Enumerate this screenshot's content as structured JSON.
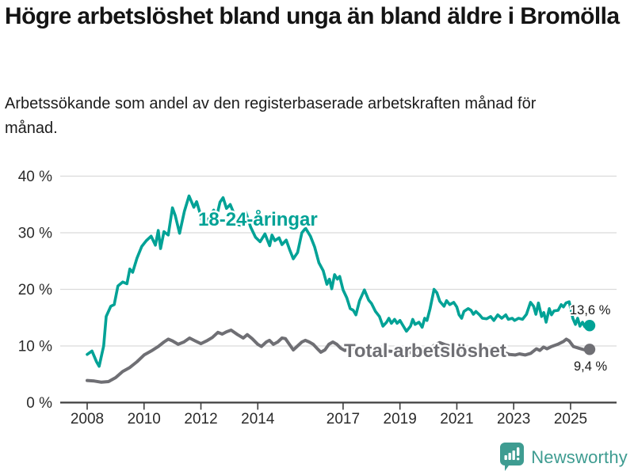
{
  "header": {
    "title": "Högre arbetslöshet bland unga än bland äldre i Bromölla",
    "subtitle": "Arbetssökande som andel av den registerbaserade arbetskraften månad för månad."
  },
  "chart_data": {
    "type": "line",
    "title": "Högre arbetslöshet bland unga än bland äldre i Bromölla",
    "xlabel": "",
    "ylabel": "Arbetssökande som andel av den registerbaserade arbetskraften (%)",
    "unit": "%",
    "ylim": [
      0,
      40
    ],
    "xlim": [
      2007.0,
      2026.6
    ],
    "grid": "horizontal",
    "legend_position": "inline-labels",
    "yticks": [
      {
        "value": 0,
        "label": "0 %"
      },
      {
        "value": 10,
        "label": "10 %"
      },
      {
        "value": 20,
        "label": "20 %"
      },
      {
        "value": 30,
        "label": "30 %"
      },
      {
        "value": 40,
        "label": "40 %"
      }
    ],
    "xticks": [
      {
        "value": 2008,
        "label": "2008"
      },
      {
        "value": 2010,
        "label": "2010"
      },
      {
        "value": 2012,
        "label": "2012"
      },
      {
        "value": 2014,
        "label": "2014"
      },
      {
        "value": 2017,
        "label": "2017"
      },
      {
        "value": 2019,
        "label": "2019"
      },
      {
        "value": 2021,
        "label": "2021"
      },
      {
        "value": 2023,
        "label": "2023"
      },
      {
        "value": 2025,
        "label": "2025"
      }
    ],
    "series": [
      {
        "name": "Total arbetslöshet",
        "inline_label": "Total arbetslöshet",
        "end_label": "9,4 %",
        "last_value": 9.4,
        "color": "#6f6f74",
        "points": [
          [
            2008.0,
            3.9
          ],
          [
            2008.25,
            3.8
          ],
          [
            2008.5,
            3.6
          ],
          [
            2008.75,
            3.7
          ],
          [
            2009.0,
            4.4
          ],
          [
            2009.25,
            5.5
          ],
          [
            2009.5,
            6.2
          ],
          [
            2009.75,
            7.2
          ],
          [
            2010.0,
            8.4
          ],
          [
            2010.25,
            9.1
          ],
          [
            2010.5,
            9.9
          ],
          [
            2010.7,
            10.7
          ],
          [
            2010.85,
            11.2
          ],
          [
            2011.0,
            10.9
          ],
          [
            2011.2,
            10.3
          ],
          [
            2011.4,
            10.7
          ],
          [
            2011.6,
            11.4
          ],
          [
            2011.8,
            10.9
          ],
          [
            2012.0,
            10.4
          ],
          [
            2012.2,
            10.9
          ],
          [
            2012.4,
            11.5
          ],
          [
            2012.6,
            12.4
          ],
          [
            2012.75,
            12.1
          ],
          [
            2012.9,
            12.5
          ],
          [
            2013.06,
            12.8
          ],
          [
            2013.29,
            12.0
          ],
          [
            2013.49,
            11.4
          ],
          [
            2013.63,
            12.0
          ],
          [
            2013.8,
            11.3
          ],
          [
            2014.0,
            10.3
          ],
          [
            2014.13,
            9.9
          ],
          [
            2014.3,
            10.7
          ],
          [
            2014.41,
            11.0
          ],
          [
            2014.55,
            10.3
          ],
          [
            2014.7,
            10.7
          ],
          [
            2014.85,
            11.4
          ],
          [
            2014.97,
            11.3
          ],
          [
            2015.11,
            10.3
          ],
          [
            2015.25,
            9.3
          ],
          [
            2015.4,
            10.0
          ],
          [
            2015.55,
            10.7
          ],
          [
            2015.67,
            11.0
          ],
          [
            2015.81,
            10.7
          ],
          [
            2015.95,
            10.3
          ],
          [
            2016.08,
            9.6
          ],
          [
            2016.22,
            8.9
          ],
          [
            2016.36,
            9.3
          ],
          [
            2016.5,
            10.3
          ],
          [
            2016.64,
            10.7
          ],
          [
            2016.78,
            10.3
          ],
          [
            2016.92,
            9.6
          ],
          [
            2017.06,
            9.2
          ],
          [
            2017.25,
            9.5
          ],
          [
            2017.45,
            9.8
          ],
          [
            2017.65,
            9.5
          ],
          [
            2017.85,
            9.3
          ],
          [
            2018.05,
            9.6
          ],
          [
            2018.3,
            9.3
          ],
          [
            2018.55,
            9.1
          ],
          [
            2018.8,
            9.0
          ],
          [
            2019.0,
            8.8
          ],
          [
            2019.25,
            8.7
          ],
          [
            2019.5,
            9.0
          ],
          [
            2019.75,
            8.8
          ],
          [
            2020.0,
            9.2
          ],
          [
            2020.2,
            10.1
          ],
          [
            2020.4,
            10.6
          ],
          [
            2020.6,
            10.2
          ],
          [
            2020.8,
            9.9
          ],
          [
            2021.0,
            9.6
          ],
          [
            2021.25,
            9.2
          ],
          [
            2021.5,
            8.9
          ],
          [
            2021.75,
            8.6
          ],
          [
            2022.0,
            8.5
          ],
          [
            2022.2,
            8.3
          ],
          [
            2022.4,
            8.5
          ],
          [
            2022.58,
            8.5
          ],
          [
            2022.7,
            8.8
          ],
          [
            2022.85,
            8.5
          ],
          [
            2023.05,
            8.4
          ],
          [
            2023.2,
            8.6
          ],
          [
            2023.4,
            8.4
          ],
          [
            2023.6,
            8.7
          ],
          [
            2023.8,
            9.5
          ],
          [
            2023.92,
            9.2
          ],
          [
            2024.05,
            9.8
          ],
          [
            2024.17,
            9.5
          ],
          [
            2024.33,
            9.9
          ],
          [
            2024.55,
            10.3
          ],
          [
            2024.75,
            10.8
          ],
          [
            2024.85,
            11.2
          ],
          [
            2024.95,
            10.9
          ],
          [
            2025.1,
            9.9
          ],
          [
            2025.3,
            9.6
          ],
          [
            2025.5,
            9.3
          ],
          [
            2025.67,
            9.4
          ]
        ]
      },
      {
        "name": "18-24-åringar",
        "inline_label": "18-24-åringar",
        "end_label": "13,6 %",
        "last_value": 13.6,
        "color": "#00a296",
        "points": [
          [
            2008.0,
            8.5
          ],
          [
            2008.17,
            9.1
          ],
          [
            2008.33,
            7.2
          ],
          [
            2008.42,
            6.4
          ],
          [
            2008.58,
            10.0
          ],
          [
            2008.67,
            15.2
          ],
          [
            2008.83,
            17.0
          ],
          [
            2008.95,
            17.3
          ],
          [
            2009.08,
            20.6
          ],
          [
            2009.25,
            21.3
          ],
          [
            2009.4,
            21.0
          ],
          [
            2009.5,
            23.6
          ],
          [
            2009.6,
            23.0
          ],
          [
            2009.75,
            25.5
          ],
          [
            2009.92,
            27.6
          ],
          [
            2010.08,
            28.6
          ],
          [
            2010.25,
            29.4
          ],
          [
            2010.4,
            27.8
          ],
          [
            2010.5,
            30.4
          ],
          [
            2010.58,
            27.2
          ],
          [
            2010.7,
            30.2
          ],
          [
            2010.85,
            29.6
          ],
          [
            2011.0,
            34.4
          ],
          [
            2011.1,
            33.0
          ],
          [
            2011.25,
            29.9
          ],
          [
            2011.42,
            33.8
          ],
          [
            2011.58,
            36.5
          ],
          [
            2011.75,
            34.5
          ],
          [
            2011.85,
            35.5
          ],
          [
            2011.95,
            33.8
          ],
          [
            2012.08,
            31.4
          ],
          [
            2012.17,
            31.2
          ],
          [
            2012.33,
            33.2
          ],
          [
            2012.45,
            34.0
          ],
          [
            2012.55,
            32.8
          ],
          [
            2012.67,
            35.4
          ],
          [
            2012.78,
            36.2
          ],
          [
            2012.9,
            34.3
          ],
          [
            2013.03,
            35.0
          ],
          [
            2013.17,
            33.3
          ],
          [
            2013.33,
            31.4
          ],
          [
            2013.5,
            31.2
          ],
          [
            2013.58,
            33.6
          ],
          [
            2013.75,
            31.0
          ],
          [
            2013.92,
            29.2
          ],
          [
            2014.08,
            28.4
          ],
          [
            2014.25,
            29.8
          ],
          [
            2014.42,
            27.7
          ],
          [
            2014.5,
            29.6
          ],
          [
            2014.6,
            28.6
          ],
          [
            2014.75,
            29.1
          ],
          [
            2014.85,
            27.9
          ],
          [
            2015.0,
            28.7
          ],
          [
            2015.12,
            27.0
          ],
          [
            2015.25,
            25.4
          ],
          [
            2015.4,
            26.5
          ],
          [
            2015.55,
            30.0
          ],
          [
            2015.68,
            30.8
          ],
          [
            2015.85,
            29.4
          ],
          [
            2016.0,
            27.5
          ],
          [
            2016.15,
            24.7
          ],
          [
            2016.3,
            23.3
          ],
          [
            2016.43,
            20.9
          ],
          [
            2016.52,
            21.8
          ],
          [
            2016.6,
            20.1
          ],
          [
            2016.7,
            22.6
          ],
          [
            2016.8,
            21.8
          ],
          [
            2016.88,
            22.3
          ],
          [
            2017.0,
            19.9
          ],
          [
            2017.13,
            18.5
          ],
          [
            2017.25,
            16.6
          ],
          [
            2017.36,
            16.3
          ],
          [
            2017.45,
            15.5
          ],
          [
            2017.58,
            18.0
          ],
          [
            2017.75,
            19.9
          ],
          [
            2017.9,
            18.1
          ],
          [
            2018.0,
            17.5
          ],
          [
            2018.14,
            16.1
          ],
          [
            2018.28,
            15.2
          ],
          [
            2018.4,
            13.5
          ],
          [
            2018.53,
            14.2
          ],
          [
            2018.61,
            14.9
          ],
          [
            2018.7,
            14.0
          ],
          [
            2018.81,
            14.7
          ],
          [
            2018.9,
            14.0
          ],
          [
            2019.0,
            14.5
          ],
          [
            2019.12,
            13.5
          ],
          [
            2019.23,
            12.6
          ],
          [
            2019.37,
            13.5
          ],
          [
            2019.45,
            14.7
          ],
          [
            2019.53,
            13.8
          ],
          [
            2019.67,
            14.2
          ],
          [
            2019.78,
            13.3
          ],
          [
            2019.87,
            14.9
          ],
          [
            2019.95,
            14.5
          ],
          [
            2020.06,
            16.6
          ],
          [
            2020.2,
            20.0
          ],
          [
            2020.3,
            19.4
          ],
          [
            2020.4,
            17.9
          ],
          [
            2020.55,
            17.0
          ],
          [
            2020.64,
            18.0
          ],
          [
            2020.75,
            17.3
          ],
          [
            2020.89,
            17.7
          ],
          [
            2021.0,
            16.9
          ],
          [
            2021.08,
            15.5
          ],
          [
            2021.17,
            14.9
          ],
          [
            2021.25,
            16.1
          ],
          [
            2021.4,
            16.6
          ],
          [
            2021.5,
            16.3
          ],
          [
            2021.58,
            15.6
          ],
          [
            2021.67,
            16.1
          ],
          [
            2021.8,
            15.5
          ],
          [
            2021.9,
            14.9
          ],
          [
            2022.05,
            14.8
          ],
          [
            2022.19,
            15.2
          ],
          [
            2022.3,
            14.5
          ],
          [
            2022.44,
            15.5
          ],
          [
            2022.58,
            14.9
          ],
          [
            2022.72,
            15.5
          ],
          [
            2022.81,
            14.7
          ],
          [
            2022.95,
            14.9
          ],
          [
            2023.03,
            14.5
          ],
          [
            2023.17,
            14.9
          ],
          [
            2023.31,
            14.7
          ],
          [
            2023.45,
            15.6
          ],
          [
            2023.59,
            17.7
          ],
          [
            2023.7,
            17.0
          ],
          [
            2023.78,
            15.6
          ],
          [
            2023.87,
            17.6
          ],
          [
            2023.98,
            15.2
          ],
          [
            2024.06,
            15.9
          ],
          [
            2024.14,
            14.2
          ],
          [
            2024.25,
            16.6
          ],
          [
            2024.33,
            15.5
          ],
          [
            2024.42,
            16.2
          ],
          [
            2024.56,
            16.3
          ],
          [
            2024.67,
            17.3
          ],
          [
            2024.75,
            16.9
          ],
          [
            2024.84,
            17.6
          ],
          [
            2024.95,
            17.8
          ],
          [
            2025.08,
            14.9
          ],
          [
            2025.17,
            13.8
          ],
          [
            2025.25,
            14.9
          ],
          [
            2025.33,
            13.5
          ],
          [
            2025.42,
            14.2
          ],
          [
            2025.5,
            13.4
          ],
          [
            2025.58,
            14.0
          ],
          [
            2025.67,
            13.6
          ]
        ]
      }
    ],
    "colors": {
      "young_series": "#00a296",
      "total_series": "#6f6f74",
      "gridline": "#dbdbdb",
      "axis": "#3d3d3d",
      "tick_text": "#2b2b2b",
      "annotation_text": "#191919",
      "brand": "#3e9c91"
    }
  },
  "footer": {
    "brand": "Newsworthy",
    "icon": "newsworthy-logo-icon"
  }
}
